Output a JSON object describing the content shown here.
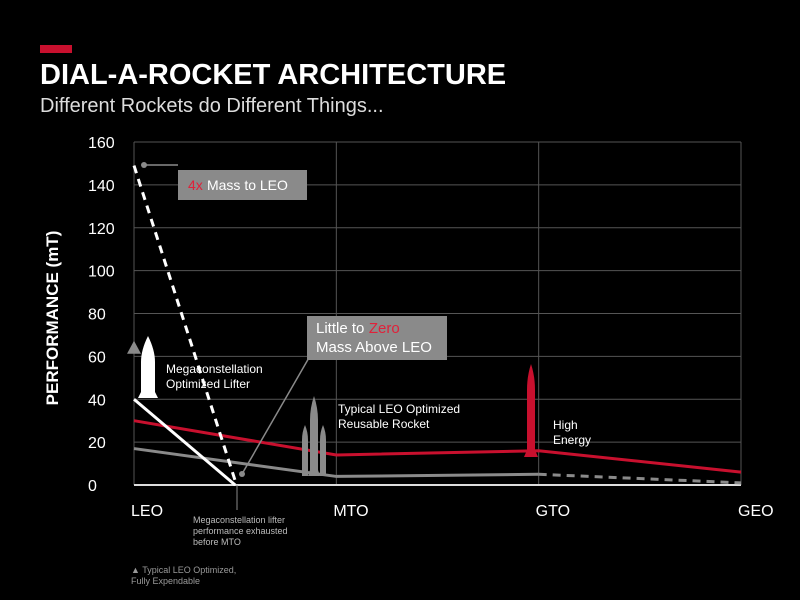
{
  "chart_data": {
    "type": "line",
    "title": "DIAL-A-ROCKET ARCHITECTURE",
    "subtitle": "Different Rockets do Different Things...",
    "ylabel": "PERFORMANCE (mT)",
    "xlim": [
      0,
      3
    ],
    "xticks": [
      {
        "value": 0,
        "label": "LEO"
      },
      {
        "value": 1,
        "label": "MTO"
      },
      {
        "value": 2,
        "label": "GTO"
      },
      {
        "value": 3,
        "label": "GEO"
      }
    ],
    "ylim": [
      0,
      160
    ],
    "yticks": [
      0,
      20,
      40,
      60,
      80,
      100,
      120,
      140,
      160
    ],
    "grid": true,
    "series": [
      {
        "color": "#c8102e",
        "style": "solid",
        "x": [
          0,
          1,
          2,
          3
        ],
        "values": [
          30,
          14,
          16,
          6
        ]
      },
      {
        "color": "#8a8a8a",
        "style": "solid",
        "x": [
          0,
          1,
          2
        ],
        "values": [
          17,
          4,
          5
        ]
      },
      {
        "color": "#8a8a8a",
        "style": "dashed",
        "x": [
          2,
          3
        ],
        "values": [
          5,
          1
        ]
      },
      {
        "color": "#ffffff",
        "style": "solid",
        "x": [
          0,
          0.5
        ],
        "values": [
          40,
          0
        ]
      },
      {
        "color": "#ffffff",
        "style": "dashed",
        "x": [
          0,
          0.5
        ],
        "values": [
          149,
          2
        ]
      }
    ],
    "markers": [
      {
        "x": 0,
        "value": 64,
        "color": "#8a8a8a",
        "shape": "triangle"
      }
    ],
    "annotations": [
      {
        "lines": [
          [
            {
              "text": "4x",
              "color": "#e0213a"
            },
            {
              "text": "Mass to LEO"
            }
          ]
        ]
      },
      {
        "lines": [
          [
            {
              "text": "Little to"
            },
            {
              "text": "Zero",
              "color": "#e0213a"
            }
          ],
          [
            {
              "text": "Mass Above LEO"
            }
          ]
        ]
      },
      {
        "lines": [
          [
            {
              "text": "Megaconstellation"
            }
          ],
          [
            {
              "text": "Optimized Lifter"
            }
          ]
        ]
      },
      {
        "lines": [
          [
            {
              "text": "Typical LEO Optimized"
            }
          ],
          [
            {
              "text": "Reusable Rocket"
            }
          ]
        ]
      },
      {
        "lines": [
          [
            {
              "text": "High"
            }
          ],
          [
            {
              "text": "Energy"
            }
          ]
        ]
      },
      {
        "lines": [
          [
            {
              "text": "Megaconstellation lifter"
            }
          ],
          [
            {
              "text": "performance exhausted"
            }
          ],
          [
            {
              "text": "before MTO"
            }
          ]
        ]
      },
      {
        "lines": [
          [
            {
              "text": "▲ Typical LEO Optimized,"
            }
          ],
          [
            {
              "text": "Fully Expendable"
            }
          ]
        ]
      }
    ]
  }
}
